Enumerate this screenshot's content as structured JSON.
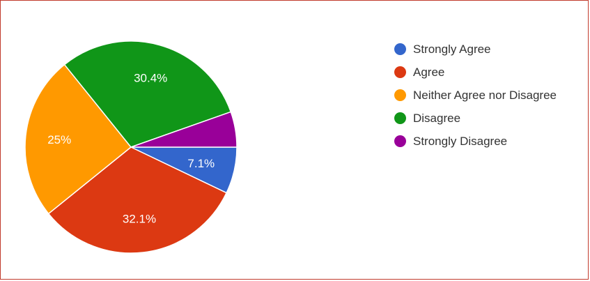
{
  "chart_data": {
    "type": "pie",
    "title": "",
    "legend_position": "right",
    "slices": [
      {
        "name": "Strongly Agree",
        "value": 7.1,
        "label": "7.1%",
        "color": "#3366cc"
      },
      {
        "name": "Agree",
        "value": 32.1,
        "label": "32.1%",
        "color": "#dc3912"
      },
      {
        "name": "Neither Agree nor Disagree",
        "value": 25,
        "label": "25%",
        "color": "#ff9900"
      },
      {
        "name": "Disagree",
        "value": 30.4,
        "label": "30.4%",
        "color": "#109618"
      },
      {
        "name": "Strongly Disagree",
        "value": 5.4,
        "label": "",
        "color": "#990099"
      }
    ]
  }
}
